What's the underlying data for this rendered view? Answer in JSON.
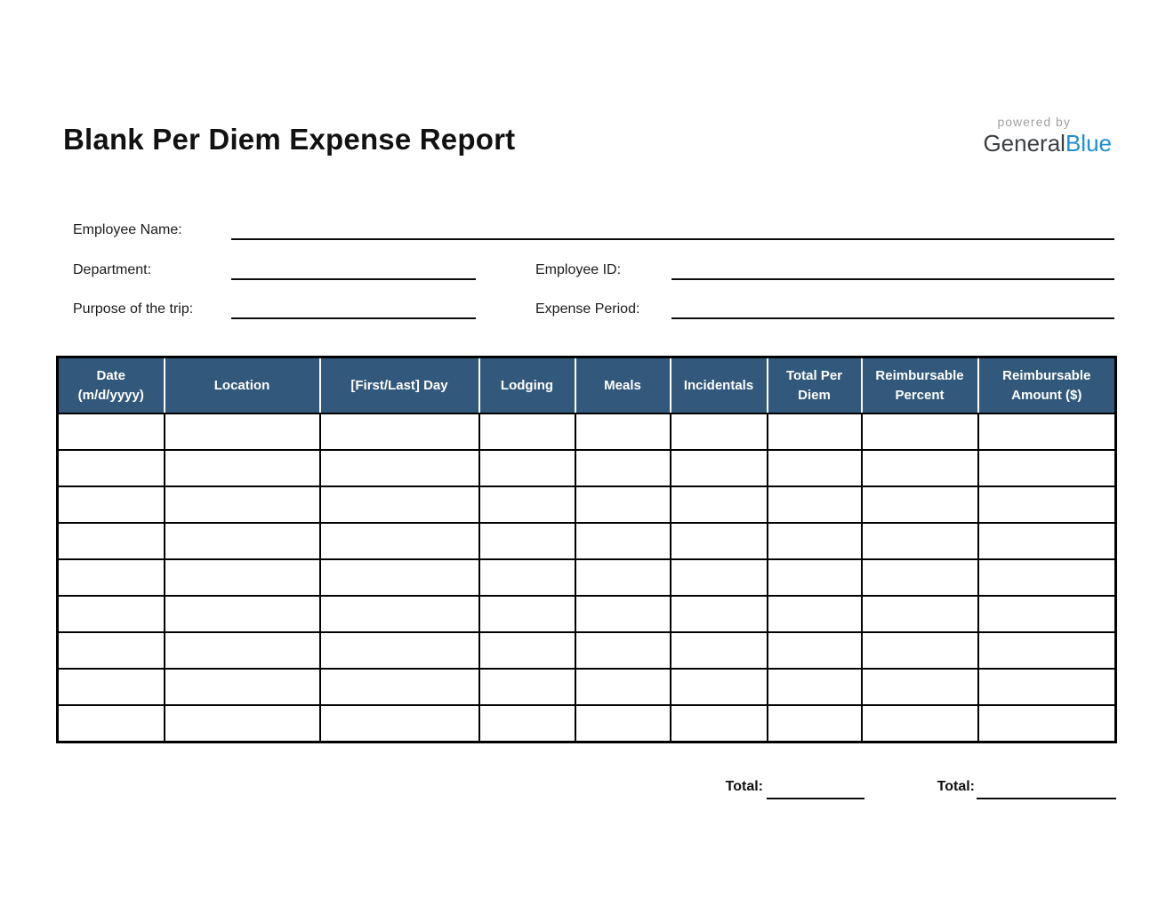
{
  "page": {
    "title": "Blank Per Diem Expense Report"
  },
  "logo": {
    "powered_by": "powered by",
    "brand_general": "General",
    "brand_blue": "Blue",
    "brand_blue_color": "#1E8FD5"
  },
  "form": {
    "employee_name_label": "Employee Name:",
    "employee_name_value": "",
    "department_label": "Department:",
    "department_value": "",
    "employee_id_label": "Employee ID:",
    "employee_id_value": "",
    "purpose_label": "Purpose of the trip:",
    "purpose_value": "",
    "expense_period_label": "Expense Period:",
    "expense_period_value": ""
  },
  "table": {
    "header_bg_color": "#32597B",
    "columns": [
      "Date (m/d/yyyy)",
      "Location",
      "[First/Last] Day",
      "Lodging",
      "Meals",
      "Incidentals",
      "Total Per Diem",
      "Reimbursable Percent",
      "Reimbursable Amount ($)"
    ],
    "empty_rows": 9,
    "empty_cell_value": ""
  },
  "totals": {
    "per_diem_total_label": "Total:",
    "per_diem_total_value": "",
    "reimbursable_total_label": "Total:",
    "reimbursable_total_value": ""
  }
}
